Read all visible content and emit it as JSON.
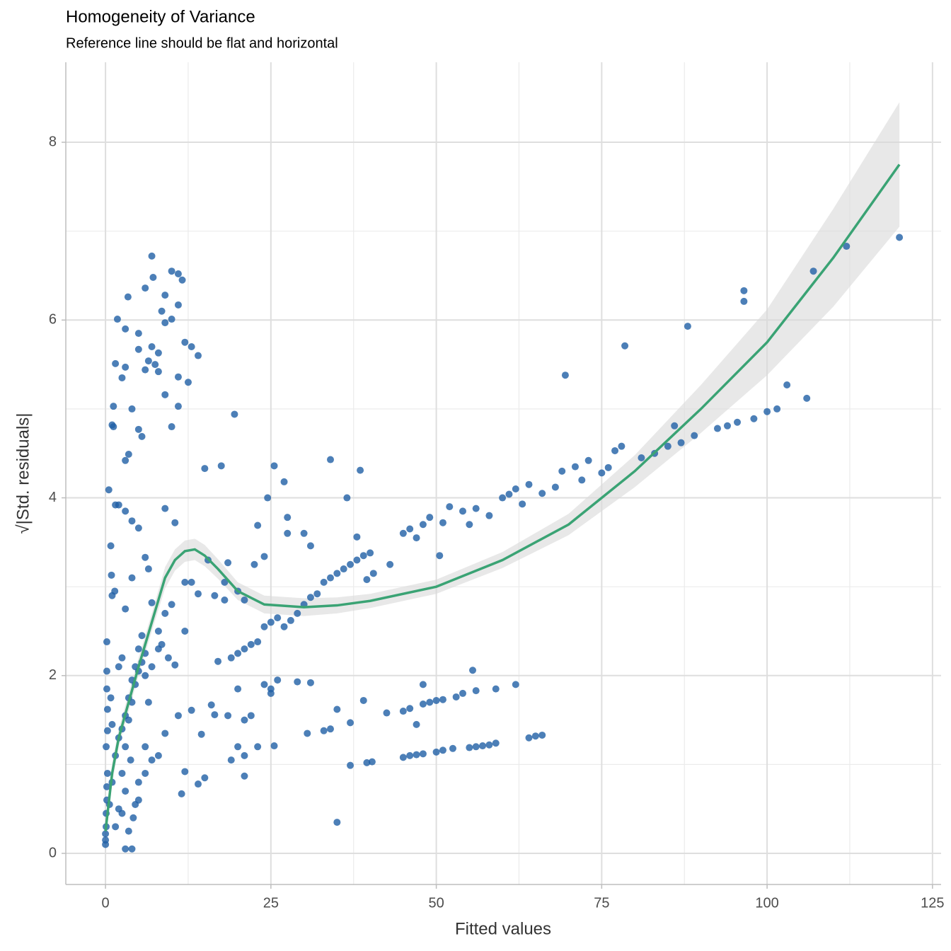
{
  "chart_data": {
    "type": "scatter",
    "title": "Homogeneity of Variance",
    "subtitle": "Reference line should be flat and horizontal",
    "x_label": "Fitted values",
    "y_label": "√|Std. residuals|",
    "xlim": [
      -6,
      126.3
    ],
    "ylim": [
      -0.35,
      8.9
    ],
    "xticks": [
      0,
      25,
      50,
      75,
      100,
      125
    ],
    "yticks": [
      0,
      2,
      4,
      6,
      8
    ],
    "x_minor_grid": [
      12.5,
      37.5,
      62.5,
      87.5,
      112.5
    ],
    "y_minor_grid": [
      1,
      3,
      5,
      7
    ],
    "grid": true,
    "points": {
      "color": "#1f5fa5",
      "x": [
        0,
        0,
        0,
        0.1,
        0.1,
        0.2,
        0.2,
        0.3,
        0.1,
        0.3,
        0.3,
        0.2,
        0.2,
        0.2,
        0.5,
        0.8,
        1,
        1.2,
        1.5,
        1.8,
        1,
        1.4,
        0.8,
        1,
        0.6,
        1.5,
        0.9,
        1.2,
        2,
        2.5,
        1.5,
        2,
        2.5,
        3,
        3.5,
        4,
        4.5,
        5,
        5.5,
        6,
        1,
        1.5,
        2,
        2.5,
        3,
        3.5,
        4,
        4.5,
        5,
        5.5,
        3,
        3.5,
        4,
        4.2,
        4.5,
        3,
        2.5,
        3.8,
        5,
        6,
        3,
        3.4,
        5,
        6,
        7,
        7.2,
        9,
        10,
        11,
        11.6,
        11,
        8.5,
        9,
        10,
        8,
        7,
        6,
        4,
        5,
        5.5,
        3,
        3.5,
        4,
        5,
        2,
        3,
        9,
        10.5,
        12,
        13,
        14,
        11,
        11,
        10,
        12.5,
        9,
        7.5,
        8,
        5,
        6.5,
        2.5,
        3,
        4,
        3,
        6,
        6.5,
        7,
        8,
        9,
        10,
        8.5,
        9.5,
        10.5,
        11,
        12,
        9,
        8,
        7,
        6,
        5,
        12,
        11.5,
        14,
        15,
        14.5,
        13,
        16,
        16.5,
        17,
        18,
        15,
        17.5,
        19.5,
        25.5,
        34,
        38.5,
        36.5,
        24.5,
        27,
        27.5,
        23,
        27.5,
        30,
        31,
        38,
        15.5,
        18.5,
        22.5,
        24,
        12,
        13,
        14,
        16.5,
        18,
        20,
        21,
        19,
        20,
        21,
        22,
        23,
        24,
        25,
        26,
        27,
        28,
        29,
        30,
        31,
        32,
        33,
        34,
        35,
        36,
        37,
        38,
        39,
        40,
        40.5,
        39.5,
        45,
        46,
        47,
        48,
        49,
        51,
        52,
        54,
        55,
        56,
        58,
        60,
        61,
        62,
        63,
        64,
        66,
        68,
        69,
        71,
        72,
        73,
        75,
        76,
        77,
        78,
        81,
        83,
        85,
        86,
        87,
        89,
        92.5,
        94,
        95.5,
        98,
        100,
        101.5,
        103,
        106,
        69.5,
        78.5,
        88,
        96.5,
        96.5,
        107,
        112,
        120,
        50.5,
        43,
        23,
        25.5,
        20,
        19,
        21,
        21,
        22,
        24,
        25,
        26,
        21,
        20,
        18.5,
        25,
        29,
        31,
        30.5,
        33,
        34,
        35,
        37,
        39,
        42.5,
        45,
        46,
        48,
        49,
        50,
        51,
        53,
        54,
        56,
        59,
        62,
        48,
        55.5,
        35,
        37,
        39.5,
        40.3,
        45,
        46,
        47,
        48,
        50,
        51,
        52.5,
        55,
        56,
        57,
        58,
        59,
        64,
        65,
        66,
        47,
        6,
        7,
        8,
        6.5
      ],
      "y": [
        0.1,
        0.15,
        0.22,
        0.3,
        0.45,
        0.6,
        0.75,
        0.9,
        1.2,
        1.38,
        1.62,
        1.85,
        2.05,
        2.38,
        4.09,
        3.46,
        4.82,
        5.03,
        5.51,
        6.01,
        2.9,
        2.95,
        1.75,
        1.45,
        0.55,
        3.92,
        3.13,
        4.8,
        2.1,
        2.2,
        0.3,
        0.5,
        0.9,
        1.2,
        1.5,
        1.7,
        1.9,
        2.05,
        2.15,
        2.25,
        0.8,
        1.1,
        1.3,
        1.4,
        1.55,
        1.75,
        1.95,
        2.1,
        2.3,
        2.45,
        0.05,
        0.25,
        0.05,
        0.4,
        0.55,
        0.7,
        0.45,
        1.05,
        0.8,
        1.2,
        5.9,
        6.26,
        5.85,
        6.36,
        6.72,
        6.48,
        6.28,
        6.55,
        6.52,
        6.45,
        6.17,
        6.1,
        5.97,
        6.01,
        5.63,
        5.7,
        5.44,
        5.0,
        4.77,
        4.69,
        4.42,
        4.49,
        3.74,
        3.66,
        3.92,
        3.85,
        3.88,
        3.72,
        5.75,
        5.7,
        5.6,
        5.36,
        5.03,
        4.8,
        5.3,
        5.16,
        5.5,
        5.42,
        5.67,
        5.54,
        5.35,
        5.47,
        3.1,
        2.75,
        3.33,
        3.2,
        2.82,
        2.5,
        2.7,
        2.8,
        2.35,
        2.2,
        2.12,
        1.55,
        2.5,
        1.35,
        1.1,
        1.05,
        0.9,
        0.6,
        0.92,
        0.67,
        0.78,
        0.85,
        1.34,
        1.61,
        1.67,
        1.56,
        2.16,
        2.85,
        4.33,
        4.36,
        4.94,
        4.36,
        4.43,
        4.31,
        4.0,
        4.0,
        4.18,
        3.78,
        3.69,
        3.6,
        3.6,
        3.46,
        3.56,
        3.3,
        3.27,
        3.25,
        3.34,
        3.05,
        3.05,
        2.92,
        2.9,
        3.05,
        2.95,
        2.85,
        2.2,
        2.25,
        2.3,
        2.35,
        2.38,
        2.55,
        2.6,
        2.65,
        2.55,
        2.62,
        2.7,
        2.8,
        2.88,
        2.92,
        3.05,
        3.1,
        3.15,
        3.2,
        3.25,
        3.3,
        3.35,
        3.38,
        3.15,
        3.08,
        3.6,
        3.65,
        3.55,
        3.7,
        3.78,
        3.72,
        3.9,
        3.85,
        3.7,
        3.88,
        3.8,
        4.0,
        4.04,
        4.1,
        3.93,
        4.15,
        4.05,
        4.12,
        4.3,
        4.35,
        4.2,
        4.42,
        4.28,
        4.34,
        4.53,
        4.58,
        4.45,
        4.5,
        4.58,
        4.81,
        4.62,
        4.7,
        4.78,
        4.81,
        4.85,
        4.89,
        4.97,
        5.0,
        5.27,
        5.12,
        5.38,
        5.71,
        5.93,
        6.33,
        6.21,
        6.55,
        6.83,
        6.93,
        3.35,
        3.25,
        1.2,
        1.21,
        1.2,
        1.05,
        1.1,
        0.87,
        1.55,
        1.9,
        1.85,
        1.95,
        1.5,
        1.85,
        1.55,
        1.8,
        1.93,
        1.92,
        1.35,
        1.38,
        1.4,
        1.62,
        1.47,
        1.72,
        1.58,
        1.6,
        1.63,
        1.68,
        1.7,
        1.72,
        1.73,
        1.76,
        1.8,
        1.83,
        1.85,
        1.9,
        1.9,
        2.06,
        0.35,
        0.99,
        1.02,
        1.03,
        1.08,
        1.1,
        1.11,
        1.12,
        1.14,
        1.16,
        1.18,
        1.19,
        1.2,
        1.21,
        1.22,
        1.24,
        1.3,
        1.32,
        1.33,
        1.45,
        2.0,
        2.1,
        2.3,
        1.7
      ]
    },
    "smooth": {
      "color": "#3aa374",
      "band_color": "#d9d9d9",
      "x": [
        0,
        1,
        2,
        3.5,
        5,
        7,
        9,
        10.5,
        12,
        13.5,
        15,
        17,
        20,
        24,
        30,
        35,
        40,
        50,
        60,
        70,
        80,
        90,
        100,
        110,
        120
      ],
      "y": [
        0.25,
        0.9,
        1.3,
        1.7,
        2.1,
        2.6,
        3.1,
        3.3,
        3.4,
        3.42,
        3.35,
        3.2,
        2.95,
        2.8,
        2.77,
        2.79,
        2.84,
        3.0,
        3.3,
        3.7,
        4.3,
        5.0,
        5.75,
        6.7,
        7.75
      ],
      "lower": [
        0.12,
        0.78,
        1.2,
        1.6,
        2.0,
        2.5,
        2.98,
        3.18,
        3.28,
        3.3,
        3.23,
        3.09,
        2.85,
        2.7,
        2.67,
        2.7,
        2.76,
        2.92,
        3.21,
        3.58,
        4.12,
        4.73,
        5.38,
        6.15,
        7.05
      ],
      "upper": [
        0.38,
        1.02,
        1.4,
        1.8,
        2.2,
        2.7,
        3.22,
        3.42,
        3.52,
        3.54,
        3.47,
        3.31,
        3.05,
        2.9,
        2.87,
        2.88,
        2.92,
        3.08,
        3.39,
        3.82,
        4.48,
        5.27,
        6.12,
        7.25,
        8.45
      ]
    }
  }
}
